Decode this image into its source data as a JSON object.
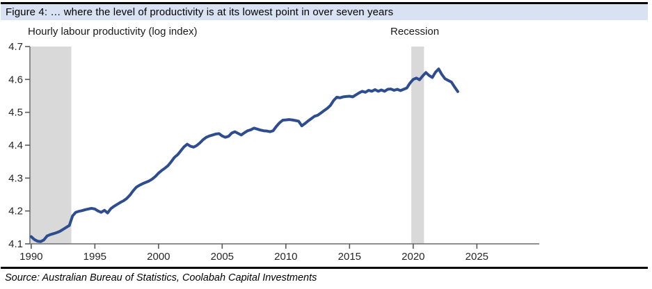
{
  "header": {
    "title": "Figure 4: … where the level of productivity is at its lowest point in over seven years"
  },
  "annotations": {
    "series_label": "Hourly labour productivity (log index)",
    "recession_label": "Recession"
  },
  "footer": {
    "source": "Source: Australian Bureau of Statistics, Coolabah Capital Investments"
  },
  "colors": {
    "line": "#2e4d8e",
    "recession_band": "#d9d9d9",
    "axis": "#7f7f7f",
    "tick": "#595959",
    "tick_label": "#262626",
    "title_bg": "#d9e2f2",
    "rule": "#000000"
  },
  "chart_data": {
    "type": "line",
    "title": "Figure 4: … where the level of productivity is at its lowest point in over seven years",
    "xlabel": "",
    "ylabel": "Hourly labour productivity (log index)",
    "grid": false,
    "legend_position": "none",
    "xlim": [
      1989.9,
      2029.9
    ],
    "ylim": [
      4.1,
      4.7
    ],
    "x_ticks": [
      1990,
      1995,
      2000,
      2005,
      2010,
      2015,
      2020,
      2025
    ],
    "y_ticks": [
      4.1,
      4.2,
      4.3,
      4.4,
      4.5,
      4.6,
      4.7
    ],
    "recession_bands": [
      [
        1989.95,
        1993.15
      ],
      [
        2019.85,
        2020.85
      ]
    ],
    "series": [
      {
        "name": "Hourly labour productivity (log index)",
        "x_start": 1990.0,
        "x_step": 0.25,
        "values": [
          4.122,
          4.113,
          4.108,
          4.107,
          4.112,
          4.124,
          4.128,
          4.131,
          4.134,
          4.138,
          4.144,
          4.15,
          4.156,
          4.185,
          4.196,
          4.199,
          4.201,
          4.204,
          4.206,
          4.208,
          4.206,
          4.2,
          4.196,
          4.202,
          4.194,
          4.207,
          4.214,
          4.22,
          4.226,
          4.231,
          4.238,
          4.248,
          4.261,
          4.272,
          4.278,
          4.283,
          4.287,
          4.291,
          4.297,
          4.305,
          4.315,
          4.323,
          4.33,
          4.338,
          4.35,
          4.363,
          4.371,
          4.383,
          4.395,
          4.403,
          4.397,
          4.394,
          4.399,
          4.407,
          4.417,
          4.424,
          4.428,
          4.431,
          4.434,
          4.435,
          4.428,
          4.424,
          4.427,
          4.437,
          4.441,
          4.436,
          4.431,
          4.438,
          4.444,
          4.447,
          4.452,
          4.449,
          4.446,
          4.444,
          4.443,
          4.441,
          4.444,
          4.457,
          4.468,
          4.476,
          4.477,
          4.478,
          4.477,
          4.475,
          4.473,
          4.459,
          4.466,
          4.474,
          4.481,
          4.488,
          4.491,
          4.498,
          4.505,
          4.512,
          4.521,
          4.536,
          4.546,
          4.544,
          4.547,
          4.548,
          4.549,
          4.547,
          4.553,
          4.559,
          4.564,
          4.561,
          4.567,
          4.564,
          4.569,
          4.564,
          4.568,
          4.564,
          4.57,
          4.571,
          4.567,
          4.57,
          4.566,
          4.57,
          4.574,
          4.589,
          4.6,
          4.604,
          4.599,
          4.611,
          4.621,
          4.612,
          4.606,
          4.622,
          4.632,
          4.615,
          4.602,
          4.597,
          4.592,
          4.577,
          4.563
        ]
      }
    ]
  }
}
